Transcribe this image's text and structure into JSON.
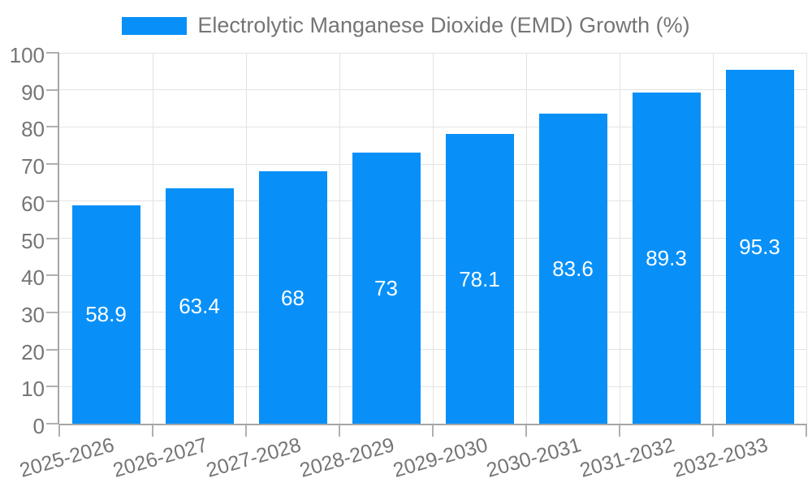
{
  "chart_data": {
    "type": "bar",
    "title": "",
    "series_name": "Electrolytic Manganese Dioxide (EMD) Growth (%)",
    "categories": [
      "2025-2026",
      "2026-2027",
      "2027-2028",
      "2028-2029",
      "2029-2030",
      "2030-2031",
      "2031-2032",
      "2032-2033"
    ],
    "values": [
      58.9,
      63.4,
      68,
      73,
      78.1,
      83.6,
      89.3,
      95.3
    ],
    "value_labels": [
      "58.9",
      "63.4",
      "68",
      "73",
      "78.1",
      "83.6",
      "89.3",
      "95.3"
    ],
    "xlabel": "",
    "ylabel": "",
    "ylim": [
      0,
      100
    ],
    "yticks": [
      "0",
      "10",
      "20",
      "30",
      "40",
      "50",
      "60",
      "70",
      "80",
      "90",
      "100"
    ],
    "grid": true,
    "legend_position": "top",
    "colors": {
      "bar": "#0890f8",
      "value_label": "#ffffff",
      "tick_label": "#757575",
      "grid_line": "#e3e3e3",
      "axis_line": "#a6a6a6"
    }
  }
}
